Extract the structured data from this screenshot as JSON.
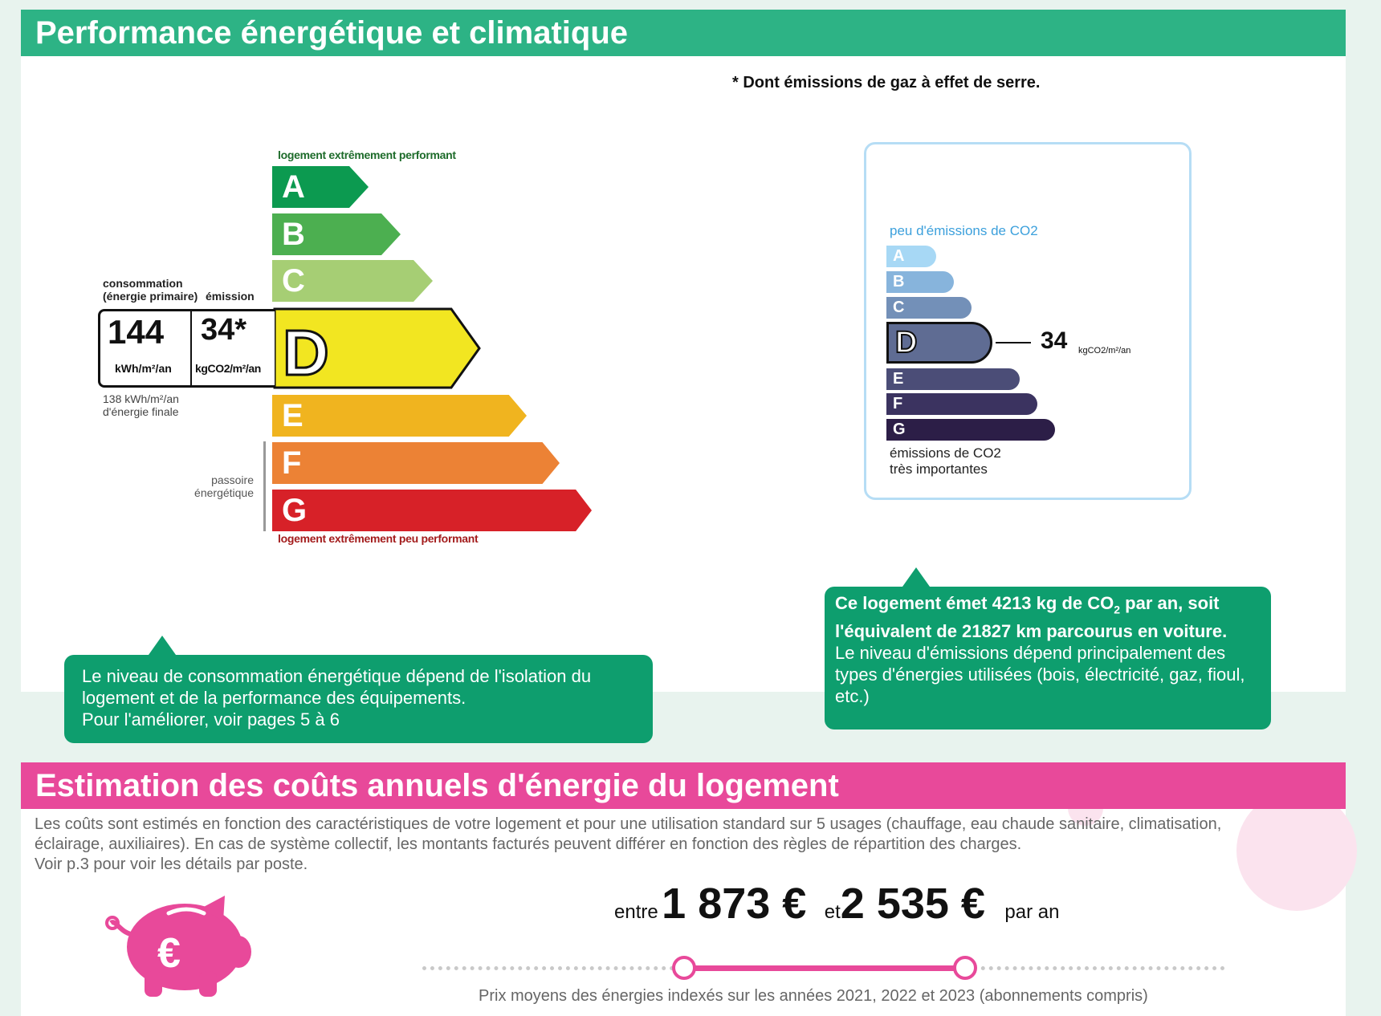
{
  "performance": {
    "title": "Performance énergétique et climatique",
    "footnote": "* Dont émissions de gaz à effet de serre.",
    "energy_label": {
      "top_caption": "logement extrêmement performant",
      "bottom_caption": "logement extrêmement peu performant",
      "classes": [
        "A",
        "B",
        "C",
        "D",
        "E",
        "F",
        "G"
      ],
      "colors": [
        "#0c9a50",
        "#4caf50",
        "#a6ce74",
        "#f2e621",
        "#f0b41f",
        "#ec8235",
        "#d72128"
      ],
      "current_class": "D",
      "consumption_header": "consommation",
      "consumption_subheader": "(énergie primaire)",
      "emission_header": "émission",
      "consumption_value": "144",
      "consumption_unit": "kWh/m²/an",
      "emission_value": "34*",
      "emission_unit": "kgCO2/m²/an",
      "final_energy_line1": "138 kWh/m²/an",
      "final_energy_line2": "d'énergie finale",
      "passoire_line1": "passoire",
      "passoire_line2": "énergétique"
    },
    "co2_label": {
      "top_caption": "peu d'émissions de CO2",
      "bottom_caption_line1": "émissions de CO2",
      "bottom_caption_line2": "très importantes",
      "classes": [
        "A",
        "B",
        "C",
        "D",
        "E",
        "F",
        "G"
      ],
      "colors": [
        "#a7d8f5",
        "#87b4dc",
        "#7390b8",
        "#5f6c93",
        "#4b4d77",
        "#3b3360",
        "#2c1e47"
      ],
      "current_class": "D",
      "value": "34",
      "unit": "kgCO2/m²/an"
    },
    "energy_bubble": {
      "line1": "Le niveau de consommation énergétique dépend de l'isolation du",
      "line2": "logement et de la performance des équipements.",
      "line3": "Pour l'améliorer, voir pages 5 à 6"
    },
    "co2_bubble": {
      "bold_part1": "Ce logement émet 4213  kg de CO",
      "sub": "2",
      "bold_part2": " par an, soit l'équivalent de 21827 km parcourus en voiture.",
      "normal": "Le niveau d'émissions dépend principalement des types d'énergies utilisées (bois, électricité, gaz, fioul, etc.)"
    }
  },
  "costs": {
    "title": "Estimation des coûts annuels d'énergie du logement",
    "description_line1": "Les coûts sont estimés en fonction des caractéristiques de votre logement et pour une utilisation standard sur 5 usages (chauffage, eau chaude sanitaire, climatisation,",
    "description_line2": "éclairage, auxiliaires). En cas de système collectif, les montants facturés peuvent différer en fonction des règles de répartition des charges.",
    "description_line3": "Voir p.3 pour voir les détails par poste.",
    "between": "entre",
    "low": "1 873 €",
    "and": "et",
    "high": "2 535 €",
    "per_year": "par an",
    "price_note": "Prix moyens des énergies indexés sur les années 2021, 2022 et 2023  (abonnements compris)",
    "accent_color": "#e8499a",
    "icon": "piggy-bank-euro-icon"
  }
}
